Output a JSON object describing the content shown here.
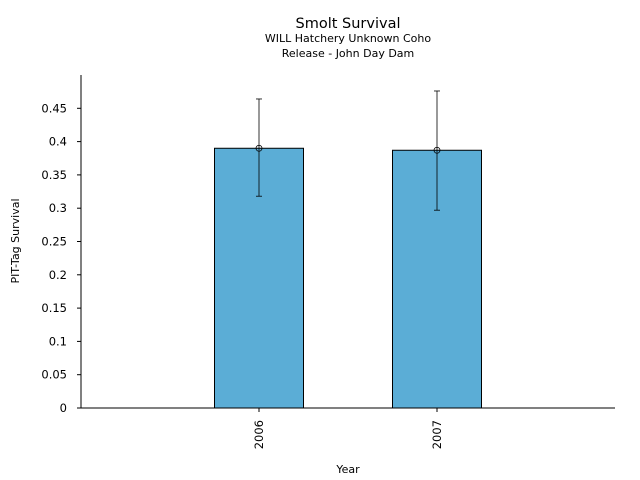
{
  "chart_data": {
    "type": "bar",
    "title": "Smolt Survival",
    "subtitle_lines": [
      "WILL Hatchery Unknown Coho",
      "Release - John Day Dam"
    ],
    "xlabel": "Year",
    "ylabel": "PIT-Tag Survival",
    "categories": [
      "2006",
      "2007"
    ],
    "values": [
      0.39,
      0.387
    ],
    "error_low": [
      0.318,
      0.297
    ],
    "error_high": [
      0.464,
      0.476
    ],
    "ylim": [
      0,
      0.5
    ],
    "yticks": [
      0,
      0.05,
      0.1,
      0.15,
      0.2,
      0.25,
      0.3,
      0.35,
      0.4,
      0.45
    ],
    "ytick_labels": [
      "0",
      "0.05",
      "0.1",
      "0.15",
      "0.2",
      "0.25",
      "0.3",
      "0.35",
      "0.4",
      "0.45"
    ],
    "bar_color": "#5badd6",
    "grid": false,
    "legend": "none"
  }
}
